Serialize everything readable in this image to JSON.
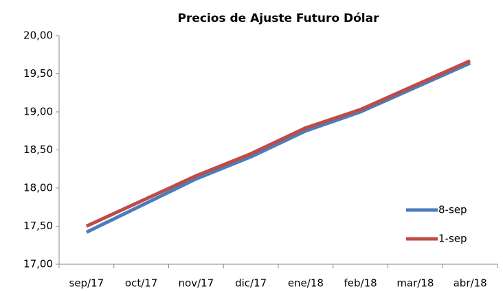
{
  "chart_data": {
    "type": "line",
    "title": "Precios de Ajuste Futuro Dólar",
    "categories": [
      "sep/17",
      "oct/17",
      "nov/17",
      "dic/17",
      "ene/18",
      "feb/18",
      "mar/18",
      "abr/18"
    ],
    "series": [
      {
        "name": "8-sep",
        "color": "#4a7ebb",
        "values": [
          17.42,
          17.77,
          18.12,
          18.41,
          18.75,
          19.0,
          19.32,
          19.64
        ]
      },
      {
        "name": "1-sep",
        "color": "#be4b48",
        "values": [
          17.5,
          17.83,
          18.16,
          18.45,
          18.79,
          19.03,
          19.35,
          19.67
        ]
      }
    ],
    "ylim": [
      17,
      20
    ],
    "yticks": [
      {
        "value": 17,
        "label": "17,00"
      },
      {
        "value": 17.5,
        "label": "17,50"
      },
      {
        "value": 18,
        "label": "18,00"
      },
      {
        "value": 18.5,
        "label": "18,50"
      },
      {
        "value": 19,
        "label": "19,00"
      },
      {
        "value": 19.5,
        "label": "19,50"
      },
      {
        "value": 20,
        "label": "20,00"
      }
    ],
    "legend": "right"
  }
}
